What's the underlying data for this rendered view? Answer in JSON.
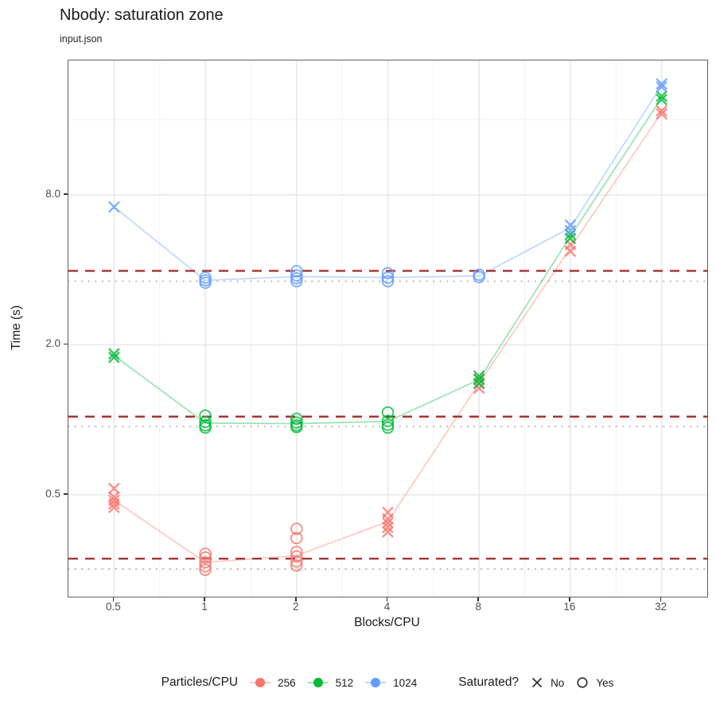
{
  "header": {
    "title": "Nbody: saturation zone",
    "subtitle": "input.json"
  },
  "axes": {
    "x_label": "Blocks/CPU",
    "y_label": "Time (s)"
  },
  "legend": {
    "color_title": "Particles/CPU",
    "color_items": [
      {
        "label": "256",
        "color": "#F8766D"
      },
      {
        "label": "512",
        "color": "#00BA38"
      },
      {
        "label": "1024",
        "color": "#619CFF"
      }
    ],
    "shape_title": "Saturated?",
    "shape_items": [
      {
        "label": "No",
        "shape": "x"
      },
      {
        "label": "Yes",
        "shape": "o"
      }
    ]
  },
  "chart_data": {
    "type": "scatter",
    "title": "Nbody: saturation zone",
    "subtitle": "input.json",
    "xlabel": "Blocks/CPU",
    "ylabel": "Time (s)",
    "x_scale": "log2",
    "y_scale": "log10",
    "grid": true,
    "legend_position": "bottom",
    "x_ticks": [
      0.5,
      1,
      2,
      4,
      8,
      16,
      32
    ],
    "x_tick_labels": [
      "0.5",
      "1",
      "2",
      "4",
      "8",
      "16",
      "32"
    ],
    "y_ticks": [
      0.5,
      2.0,
      8.0
    ],
    "y_tick_labels": [
      "0.5",
      "2.0",
      "8.0"
    ],
    "x_minor": [
      0.7071,
      1.4142,
      2.8284,
      5.6569,
      11.3137,
      22.6274
    ],
    "y_minor": [
      0.25,
      1,
      4,
      16
    ],
    "x_domain": [
      0.35355,
      45.255
    ],
    "y_domain": [
      0.195,
      27.7
    ],
    "colors": {
      "dashed_line": "#9e2a2b",
      "dotted_line": "#bdbdbd",
      "grid_major": "#e5e5e5",
      "grid_minor": "#f2f2f2"
    },
    "reference_lines": [
      {
        "series": "1024",
        "dashed": 3.96,
        "dotted": 3.6
      },
      {
        "series": "512",
        "dashed": 1.03,
        "dotted": 0.94
      },
      {
        "series": "256",
        "dashed": 0.277,
        "dotted": 0.252
      }
    ],
    "series": [
      {
        "name": "256",
        "color": "#F8766D",
        "trend": [
          0.475,
          0.268,
          0.285,
          0.39,
          1.4,
          4.9,
          17.1
        ],
        "points": [
          {
            "x": 0.5,
            "time": 0.53,
            "saturated": false
          },
          {
            "x": 0.5,
            "time": 0.49,
            "saturated": false
          },
          {
            "x": 0.5,
            "time": 0.475,
            "saturated": false
          },
          {
            "x": 0.5,
            "time": 0.46,
            "saturated": false
          },
          {
            "x": 0.5,
            "time": 0.445,
            "saturated": false
          },
          {
            "x": 1,
            "time": 0.29,
            "saturated": true
          },
          {
            "x": 1,
            "time": 0.28,
            "saturated": true
          },
          {
            "x": 1,
            "time": 0.268,
            "saturated": true
          },
          {
            "x": 1,
            "time": 0.258,
            "saturated": true
          },
          {
            "x": 1,
            "time": 0.25,
            "saturated": true
          },
          {
            "x": 2,
            "time": 0.365,
            "saturated": true
          },
          {
            "x": 2,
            "time": 0.335,
            "saturated": true
          },
          {
            "x": 2,
            "time": 0.295,
            "saturated": true
          },
          {
            "x": 2,
            "time": 0.283,
            "saturated": true
          },
          {
            "x": 2,
            "time": 0.27,
            "saturated": true
          },
          {
            "x": 2,
            "time": 0.26,
            "saturated": true
          },
          {
            "x": 4,
            "time": 0.425,
            "saturated": false
          },
          {
            "x": 4,
            "time": 0.4,
            "saturated": false
          },
          {
            "x": 4,
            "time": 0.385,
            "saturated": false
          },
          {
            "x": 4,
            "time": 0.37,
            "saturated": false
          },
          {
            "x": 4,
            "time": 0.355,
            "saturated": false
          },
          {
            "x": 8,
            "time": 1.46,
            "saturated": false
          },
          {
            "x": 8,
            "time": 1.4,
            "saturated": false
          },
          {
            "x": 8,
            "time": 1.34,
            "saturated": false
          },
          {
            "x": 16,
            "time": 5.05,
            "saturated": false
          },
          {
            "x": 16,
            "time": 4.75,
            "saturated": false
          },
          {
            "x": 32,
            "time": 17.4,
            "saturated": false
          },
          {
            "x": 32,
            "time": 16.9,
            "saturated": false
          }
        ]
      },
      {
        "name": "512",
        "color": "#00BA38",
        "trend": [
          1.81,
          0.97,
          0.965,
          0.985,
          1.45,
          5.45,
          19.6
        ],
        "points": [
          {
            "x": 0.5,
            "time": 1.84,
            "saturated": false
          },
          {
            "x": 0.5,
            "time": 1.78,
            "saturated": false
          },
          {
            "x": 1,
            "time": 1.04,
            "saturated": true
          },
          {
            "x": 1,
            "time": 0.98,
            "saturated": true
          },
          {
            "x": 1,
            "time": 0.95,
            "saturated": true
          },
          {
            "x": 1,
            "time": 0.93,
            "saturated": true
          },
          {
            "x": 2,
            "time": 1.01,
            "saturated": true
          },
          {
            "x": 2,
            "time": 0.975,
            "saturated": true
          },
          {
            "x": 2,
            "time": 0.95,
            "saturated": true
          },
          {
            "x": 2,
            "time": 0.935,
            "saturated": true
          },
          {
            "x": 4,
            "time": 1.07,
            "saturated": true
          },
          {
            "x": 4,
            "time": 0.99,
            "saturated": true
          },
          {
            "x": 4,
            "time": 0.955,
            "saturated": true
          },
          {
            "x": 4,
            "time": 0.93,
            "saturated": true
          },
          {
            "x": 8,
            "time": 1.5,
            "saturated": false
          },
          {
            "x": 8,
            "time": 1.45,
            "saturated": false
          },
          {
            "x": 8,
            "time": 1.4,
            "saturated": false
          },
          {
            "x": 16,
            "time": 5.55,
            "saturated": false
          },
          {
            "x": 16,
            "time": 5.35,
            "saturated": false
          },
          {
            "x": 32,
            "time": 19.9,
            "saturated": false
          },
          {
            "x": 32,
            "time": 19.3,
            "saturated": false
          }
        ]
      },
      {
        "name": "1024",
        "color": "#619CFF",
        "trend": [
          7.15,
          3.63,
          3.76,
          3.73,
          3.78,
          5.9,
          22.0
        ],
        "points": [
          {
            "x": 0.5,
            "time": 7.15,
            "saturated": false
          },
          {
            "x": 1,
            "time": 3.72,
            "saturated": true
          },
          {
            "x": 1,
            "time": 3.63,
            "saturated": true
          },
          {
            "x": 1,
            "time": 3.55,
            "saturated": true
          },
          {
            "x": 2,
            "time": 3.95,
            "saturated": true
          },
          {
            "x": 2,
            "time": 3.8,
            "saturated": true
          },
          {
            "x": 2,
            "time": 3.7,
            "saturated": true
          },
          {
            "x": 2,
            "time": 3.6,
            "saturated": true
          },
          {
            "x": 4,
            "time": 3.88,
            "saturated": true
          },
          {
            "x": 4,
            "time": 3.72,
            "saturated": true
          },
          {
            "x": 4,
            "time": 3.6,
            "saturated": true
          },
          {
            "x": 8,
            "time": 3.82,
            "saturated": true
          },
          {
            "x": 8,
            "time": 3.74,
            "saturated": true
          },
          {
            "x": 16,
            "time": 6.05,
            "saturated": false
          },
          {
            "x": 16,
            "time": 5.75,
            "saturated": false
          },
          {
            "x": 32,
            "time": 22.3,
            "saturated": false
          },
          {
            "x": 32,
            "time": 21.7,
            "saturated": false
          }
        ]
      }
    ]
  }
}
